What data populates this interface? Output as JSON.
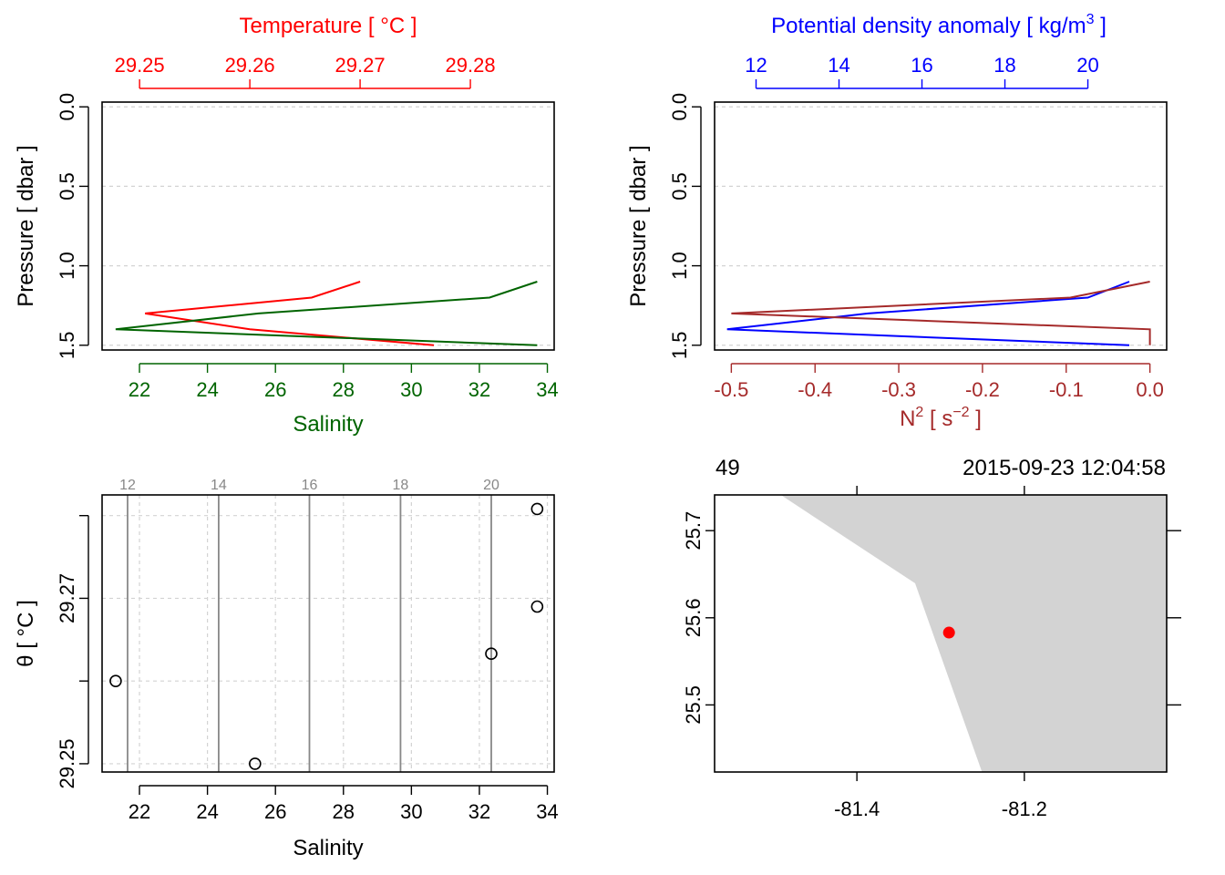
{
  "chart_data": [
    {
      "type": "line",
      "panel": "TS profile",
      "top_axis": {
        "label": "Temperature [ °C ]",
        "ticks": [
          "29.25",
          "29.26",
          "29.27",
          "29.28"
        ],
        "range": [
          29.2466,
          29.2876
        ],
        "color": "#ff0000"
      },
      "bottom_axis": {
        "label": "Salinity",
        "ticks": [
          "22",
          "24",
          "26",
          "28",
          "30",
          "32",
          "34"
        ],
        "range": [
          20.9,
          34.2
        ],
        "color": "#006400"
      },
      "left_axis": {
        "label": "Pressure [ dbar ]",
        "ticks": [
          "0.0",
          "0.5",
          "1.0",
          "1.5"
        ],
        "range": [
          1.53,
          -0.03
        ],
        "reversed": true
      },
      "grid": true,
      "series": [
        {
          "color": "#ff0000",
          "axis": "top",
          "points": [
            [
              29.27,
              1.1
            ],
            [
              29.2656,
              1.2
            ],
            [
              29.2505,
              1.3
            ],
            [
              29.26,
              1.4
            ],
            [
              29.2767,
              1.5
            ]
          ]
        },
        {
          "color": "#006400",
          "axis": "bottom",
          "points": [
            [
              33.7,
              1.1
            ],
            [
              32.3,
              1.2
            ],
            [
              25.5,
              1.3
            ],
            [
              21.3,
              1.4
            ],
            [
              33.7,
              1.5
            ]
          ]
        }
      ]
    },
    {
      "type": "line",
      "panel": "density and N2 profile",
      "top_axis": {
        "label_main": "Potential density anomaly [ kg/m",
        "label_sup": "3",
        "label_end": " ]",
        "ticks": [
          "12",
          "14",
          "16",
          "18",
          "20"
        ],
        "range": [
          11.0,
          21.9
        ],
        "color": "#0000ff"
      },
      "bottom_axis": {
        "label_main": "N",
        "label_sup": "2",
        "label_mid": " [ s",
        "label_sup2": "−2",
        "label_end": " ]",
        "ticks": [
          "-0.5",
          "-0.4",
          "-0.3",
          "-0.2",
          "-0.1",
          "0.0"
        ],
        "range": [
          -0.52,
          0.02
        ],
        "color": "#a52a2a"
      },
      "left_axis": {
        "label": "Pressure [ dbar ]",
        "ticks": [
          "0.0",
          "0.5",
          "1.0",
          "1.5"
        ],
        "range": [
          1.53,
          -0.03
        ],
        "reversed": true
      },
      "grid": true,
      "series": [
        {
          "color": "#0000ff",
          "axis": "top",
          "points": [
            [
              21.0,
              1.1
            ],
            [
              20.0,
              1.2
            ],
            [
              14.7,
              1.3
            ],
            [
              11.3,
              1.4
            ],
            [
              21.0,
              1.5
            ]
          ]
        },
        {
          "color": "#a52a2a",
          "axis": "bottom",
          "points": [
            [
              0.0,
              1.1
            ],
            [
              -0.095,
              1.2
            ],
            [
              -0.5,
              1.3
            ],
            [
              0.0,
              1.4
            ],
            [
              0.0,
              1.5
            ]
          ]
        }
      ]
    },
    {
      "type": "scatter",
      "panel": "TS diagram",
      "xlabel": "Salinity",
      "ylabel": "θ [ °C ]",
      "x_ticks": [
        "22",
        "24",
        "26",
        "28",
        "30",
        "32",
        "34"
      ],
      "y_ticks": [
        "29.25",
        "29.27"
      ],
      "xlim": [
        20.9,
        34.2
      ],
      "ylim": [
        29.249,
        29.2825
      ],
      "grid": true,
      "density_isopleths": {
        "labels": [
          "12",
          "14",
          "16",
          "18",
          "20"
        ],
        "salinity": [
          21.65,
          24.33,
          27.0,
          29.68,
          32.35
        ],
        "color": "#888888"
      },
      "points": [
        [
          21.3,
          29.26
        ],
        [
          25.4,
          29.25
        ],
        [
          32.35,
          29.2633
        ],
        [
          33.7,
          29.269
        ],
        [
          33.7,
          29.2808
        ]
      ]
    },
    {
      "type": "map",
      "panel": "station map",
      "station_label": "49",
      "datetime": "2015-09-23 12:04:58",
      "x_ticks": [
        "-81.4",
        "-81.2"
      ],
      "y_ticks": [
        "25.5",
        "25.6",
        "25.7"
      ],
      "xlim": [
        -81.57,
        -81.03
      ],
      "ylim": [
        25.423,
        25.741
      ],
      "land_color": "#d3d3d3",
      "coastline": [
        [
          -81.49,
          25.741
        ],
        [
          -81.33,
          25.64
        ],
        [
          -81.25,
          25.423
        ]
      ],
      "station": {
        "lon": -81.29,
        "lat": 25.583,
        "color": "#ff0000"
      }
    }
  ]
}
